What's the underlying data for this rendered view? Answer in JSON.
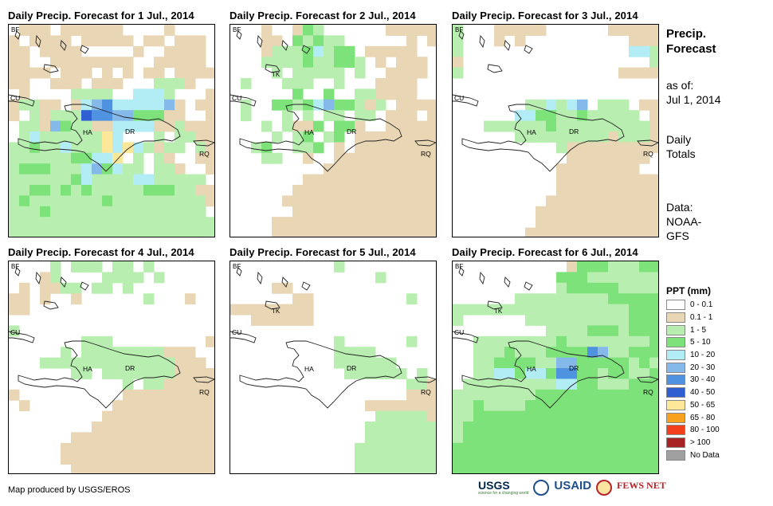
{
  "panels": [
    {
      "title": "Daily Precip. Forecast for 1 Jul., 2014"
    },
    {
      "title": "Daily Precip. Forecast for 2 Jul., 2014"
    },
    {
      "title": "Daily Precip. Forecast for 3 Jul., 2014"
    },
    {
      "title": "Daily Precip. Forecast for 4 Jul., 2014"
    },
    {
      "title": "Daily Precip. Forecast for 5 Jul., 2014"
    },
    {
      "title": "Daily Precip. Forecast for 6 Jul., 2014"
    }
  ],
  "map_labels": {
    "bf": "BF",
    "tk": "TK",
    "cu": "CU",
    "ha": "HA",
    "dr": "DR",
    "rq": "RQ"
  },
  "sidebar": {
    "title_line1": "Precip.",
    "title_line2": "Forecast",
    "asof_label": "as of:",
    "asof_date": "Jul 1, 2014",
    "totals_line1": "Daily",
    "totals_line2": "Totals",
    "data_line1": "Data:",
    "data_line2": "NOAA-",
    "data_line3": "GFS"
  },
  "legend": {
    "title": "PPT (mm)",
    "items": [
      {
        "label": "0 - 0.1",
        "color": "#ffffff"
      },
      {
        "label": "0.1 - 1",
        "color": "#e8d6b4"
      },
      {
        "label": "1 - 5",
        "color": "#b8eeb0"
      },
      {
        "label": "5 - 10",
        "color": "#7de27a"
      },
      {
        "label": "10 - 20",
        "color": "#b2ecf4"
      },
      {
        "label": "20 - 30",
        "color": "#84b9ea"
      },
      {
        "label": "30 - 40",
        "color": "#4f93e0"
      },
      {
        "label": "40 - 50",
        "color": "#2f5fd0"
      },
      {
        "label": "50 - 65",
        "color": "#fde89a"
      },
      {
        "label": "65 - 80",
        "color": "#f7a21f"
      },
      {
        "label": "80 - 100",
        "color": "#f3401c"
      },
      {
        "label": "> 100",
        "color": "#a82424"
      },
      {
        "label": "No Data",
        "color": "#a0a0a0"
      }
    ]
  },
  "footer": {
    "credit": "Map produced by USGS/EROS",
    "usgs": "USGS",
    "usgs_sub": "science for a changing world",
    "usaid": "USAID",
    "fews": "FEWS NET"
  },
  "grid": {
    "cols": 20,
    "rows": 20
  },
  "forecast_grids": [
    [
      "01110111111000010000",
      "10111101111101101110",
      "11011110000010011110",
      "11001111111100111110",
      "11110111010101101111",
      "11001110111000222100",
      "01000022220044420001",
      "12211014564444451011",
      "10212227665533311001",
      "02215322114444112111",
      "02422222284000202211",
      "22322422284842122021",
      "22222233448020210011",
      "23332224534220221001",
      "22222234222244222220",
      "22332323222223332211",
      "23222222232222222221",
      "22232222222222222220",
      "22222222222222222222",
      "22222222222222222222"
    ],
    [
      "00010013200000011111",
      "00011032322000000101",
      "00012223423301111100",
      "00022223223320101110",
      "00002022222020011110",
      "02000222002000111100",
      "00000030030022111100",
      "02003323453321201111",
      "02000202022022011101",
      "00020211303310011111",
      "00002023023011111111",
      "00230022301011111111",
      "00022001001111111111",
      "00000000011111111111",
      "00000001111111111111",
      "00000011111111111111",
      "00000111111111111111",
      "00000011111111111111",
      "00001111111111111111",
      "00001111111111111111"
    ],
    [
      "20001111100000011111",
      "20001010000000000111",
      "20000000000000000442",
      "10000000000000000002",
      "20000000000000001111",
      "00000000000000000000",
      "00000000000000000000",
      "00000002242450222011",
      "00000044332232222201",
      "00022222232222222221",
      "00000022222222212221",
      "00000000002111111111",
      "00000000000111111110",
      "00000000001111111100",
      "00000000001111111111",
      "00000000001111111111",
      "00000000011111111111",
      "00000000111111111111",
      "00000000111111111111",
      "00000001111111111111"
    ],
    [
      "00002022202202000000",
      "00012000022220200000",
      "01011220220200000000",
      "11010010000002000100",
      "11000000000000000000",
      "00000000000000000000",
      "20000000000000000000",
      "00000002220000000001",
      "00000202222222211100",
      "00022222222222221110",
      "00000022022222221111",
      "00000000000202211111",
      "10000000000111111111",
      "01000000001111111111",
      "00000000011111111111",
      "00000000111111111111",
      "00000011111111111111",
      "00000111111111111111",
      "00000111111111111111",
      "00000011111111111111"
    ],
    [
      "00000000002000000000",
      "00000000000000200000",
      "00001100000000000000",
      "00000011000000000200",
      "11111111000000000000",
      "00111111000000000000",
      "00000000000000000000",
      "00000000002000000200",
      "00000000002222000000",
      "00000000002222220000",
      "00000000000222222020",
      "00000000000000000221",
      "00000000000000000111",
      "00000000000001111111",
      "00000000000000222221",
      "00000000000002222222",
      "00000000000002222222",
      "00000000000022222222",
      "00000000000022222222",
      "00000000000022222222"
    ],
    [
      "00000000000133322233",
      "00000000003332222222",
      "00000000002333332222",
      "00000022222222233333",
      "22222222222222222333",
      "20000002222222222333",
      "00000000022223332333",
      "00222222223222222223",
      "00222322233336522333",
      "00223333225533333232",
      "00224434436633233223",
      "02222222224433222333",
      "22222222333333333333",
      "22322223333333333333",
      "22333333333333333333",
      "23333333333333333333",
      "23333333333333333333",
      "33333333333333333333",
      "33333333333333333333",
      "33333333333333333333"
    ]
  ]
}
